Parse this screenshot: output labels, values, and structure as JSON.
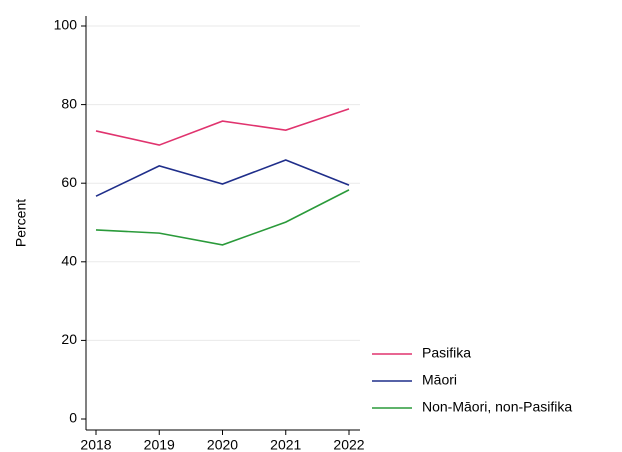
{
  "chart_data": {
    "type": "line",
    "y_label": "Percent",
    "x": [
      2018,
      2019,
      2020,
      2021,
      2022
    ],
    "series": [
      {
        "name": "Pasifika",
        "color": "#e0336e",
        "values": [
          73.3,
          69.7,
          75.8,
          73.5,
          78.9
        ]
      },
      {
        "name": "Māori",
        "color": "#1f2e8a",
        "values": [
          56.7,
          64.4,
          59.8,
          65.9,
          59.5
        ]
      },
      {
        "name": "Non-Māori, non-Pasifika",
        "color": "#2a9a3a",
        "values": [
          48.1,
          47.3,
          44.3,
          50.1,
          58.3
        ]
      }
    ],
    "xlim": [
      2018,
      2022
    ],
    "xticks": [
      2018,
      2019,
      2020,
      2021,
      2022
    ],
    "ylim": [
      0,
      100
    ],
    "yticks": [
      0,
      20,
      40,
      60,
      80,
      100
    ],
    "grid": true,
    "legend": "lower right"
  }
}
